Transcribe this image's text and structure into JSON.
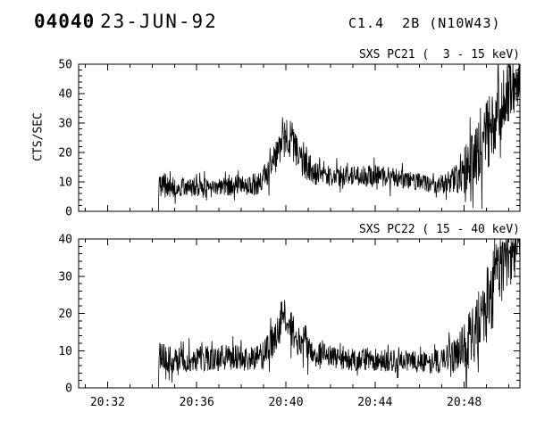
{
  "header": {
    "event_id": "04040",
    "date": "23-JUN-92",
    "flare_info": "C1.4  2B (N10W43)"
  },
  "chart_data": [
    {
      "type": "line",
      "title": "SXS PC21 (  3 - 15 keV)",
      "ylabel": "CTS/SEC",
      "ylim": [
        0,
        50
      ],
      "yticks": [
        0,
        10,
        20,
        30,
        40,
        50
      ],
      "yminor_interval": 2,
      "xlim": [
        30.7,
        50.5
      ],
      "xticks": [
        {
          "value": 32,
          "label": "20:32"
        },
        {
          "value": 36,
          "label": "20:36"
        },
        {
          "value": 40,
          "label": "20:40"
        },
        {
          "value": 44,
          "label": "20:44"
        },
        {
          "value": 48,
          "label": "20:48"
        }
      ],
      "xminor_interval": 1,
      "show_xlabels": false,
      "series_color": "#000000",
      "grid": false,
      "envelope_columns": [
        "time_minutes_after_20h",
        "mean_cts_per_sec",
        "noise_amplitude"
      ],
      "envelope": [
        [
          34.28,
          0,
          0
        ],
        [
          34.32,
          9,
          5
        ],
        [
          35.0,
          8,
          3.5
        ],
        [
          36.0,
          8,
          3.5
        ],
        [
          37.0,
          8,
          3.2
        ],
        [
          38.0,
          8.5,
          3.5
        ],
        [
          38.8,
          9.5,
          4
        ],
        [
          39.3,
          14,
          5
        ],
        [
          39.7,
          22,
          6
        ],
        [
          40.0,
          26,
          7
        ],
        [
          40.3,
          23,
          7
        ],
        [
          40.7,
          17,
          5
        ],
        [
          41.3,
          13,
          4
        ],
        [
          42.0,
          12,
          3.5
        ],
        [
          43.0,
          12,
          3.5
        ],
        [
          44.0,
          12,
          4
        ],
        [
          45.0,
          11,
          3.5
        ],
        [
          46.0,
          10,
          3
        ],
        [
          46.8,
          9,
          3
        ],
        [
          47.4,
          10,
          4
        ],
        [
          48.0,
          14,
          8
        ],
        [
          48.6,
          19,
          11
        ],
        [
          49.1,
          26,
          13
        ],
        [
          49.6,
          34,
          13
        ],
        [
          50.0,
          40,
          11
        ],
        [
          50.5,
          46,
          8
        ]
      ]
    },
    {
      "type": "line",
      "title": "SXS PC22 ( 15 - 40 keV)",
      "ylabel": "",
      "ylim": [
        0,
        40
      ],
      "yticks": [
        0,
        10,
        20,
        30,
        40
      ],
      "yminor_interval": 2,
      "xlim": [
        30.7,
        50.5
      ],
      "xticks": [
        {
          "value": 32,
          "label": "20:32"
        },
        {
          "value": 36,
          "label": "20:36"
        },
        {
          "value": 40,
          "label": "20:40"
        },
        {
          "value": 44,
          "label": "20:44"
        },
        {
          "value": 48,
          "label": "20:48"
        }
      ],
      "xminor_interval": 1,
      "show_xlabels": true,
      "series_color": "#000000",
      "grid": false,
      "envelope_columns": [
        "time_minutes_after_20h",
        "mean_cts_per_sec",
        "noise_amplitude"
      ],
      "envelope": [
        [
          34.28,
          0,
          0
        ],
        [
          34.32,
          8,
          5
        ],
        [
          35.0,
          7.5,
          3.5
        ],
        [
          36.0,
          7.5,
          3.5
        ],
        [
          37.0,
          8,
          3.5
        ],
        [
          38.0,
          8,
          3.5
        ],
        [
          39.0,
          9,
          4
        ],
        [
          39.5,
          13,
          5
        ],
        [
          39.9,
          20,
          5
        ],
        [
          40.2,
          16,
          5
        ],
        [
          40.7,
          11,
          4
        ],
        [
          41.3,
          9,
          3.5
        ],
        [
          42.0,
          8,
          3
        ],
        [
          43.0,
          7.5,
          3
        ],
        [
          44.0,
          7.5,
          3
        ],
        [
          45.0,
          7,
          3
        ],
        [
          46.0,
          7,
          3
        ],
        [
          47.0,
          7,
          3.5
        ],
        [
          47.7,
          9,
          5
        ],
        [
          48.3,
          13,
          8
        ],
        [
          48.8,
          19,
          10
        ],
        [
          49.3,
          27,
          11
        ],
        [
          49.8,
          33,
          9
        ],
        [
          50.5,
          38,
          6
        ]
      ]
    }
  ]
}
